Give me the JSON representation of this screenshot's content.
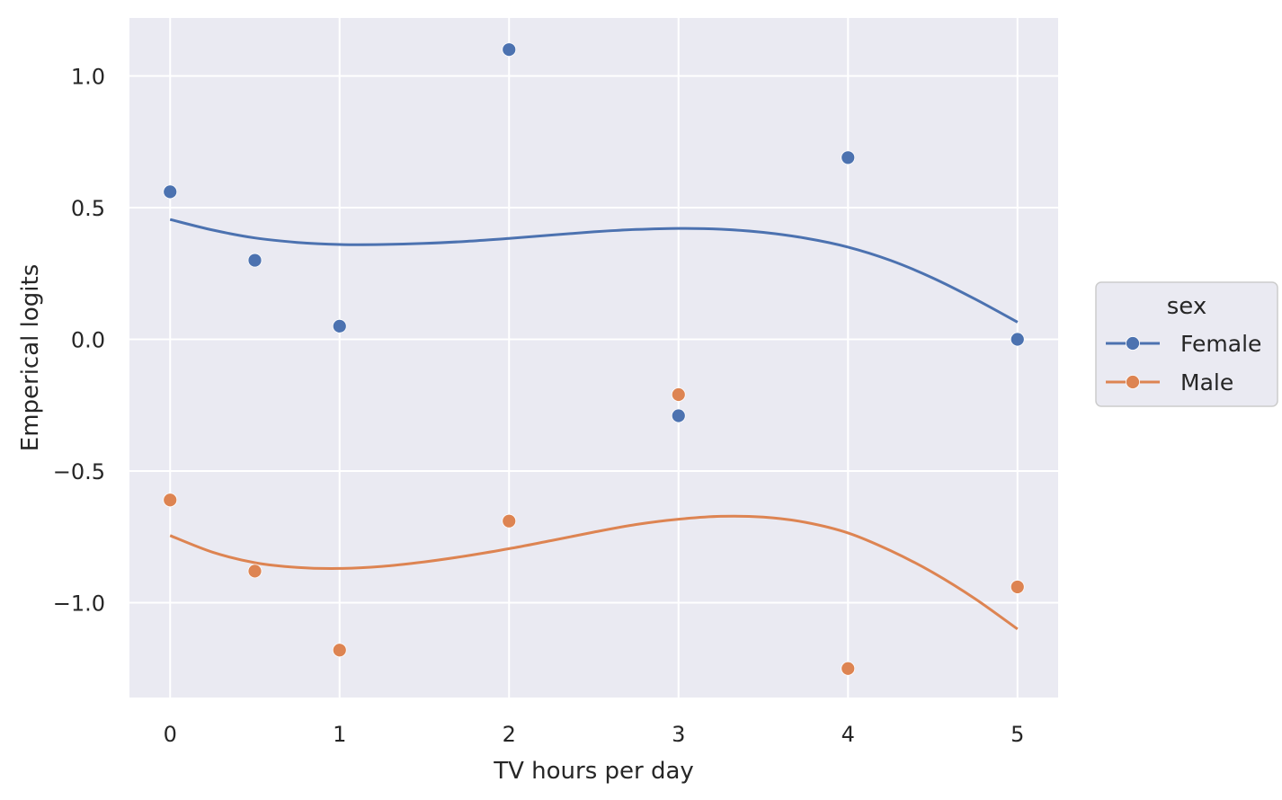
{
  "chart_data": {
    "type": "scatter",
    "xlabel": "TV hours per day",
    "ylabel": "Emperical logits",
    "xlim": [
      -0.24,
      5.24
    ],
    "ylim": [
      -1.36,
      1.22
    ],
    "xticks": [
      0,
      1,
      2,
      3,
      4,
      5
    ],
    "xtick_labels": [
      "0",
      "1",
      "2",
      "3",
      "4",
      "5"
    ],
    "yticks": [
      -1.0,
      -0.5,
      0.0,
      0.5,
      1.0
    ],
    "ytick_labels": [
      "−1.0",
      "−0.5",
      "0.0",
      "0.5",
      "1.0"
    ],
    "grid": true,
    "legend": {
      "title": "sex",
      "placement": "right"
    },
    "series": [
      {
        "name": "Female",
        "color": "#4c72b0",
        "points": {
          "x": [
            0,
            0.5,
            1,
            2,
            3,
            4,
            5
          ],
          "y": [
            0.56,
            0.3,
            0.05,
            1.1,
            -0.29,
            0.69,
            0.0
          ]
        },
        "fit": {
          "x": [
            0,
            0.25,
            0.5,
            0.75,
            1,
            1.25,
            1.5,
            1.75,
            2,
            2.25,
            2.5,
            2.75,
            3,
            3.25,
            3.5,
            3.75,
            4,
            4.25,
            4.5,
            4.75,
            5
          ],
          "y": [
            0.455,
            0.415,
            0.385,
            0.368,
            0.36,
            0.36,
            0.364,
            0.372,
            0.383,
            0.396,
            0.408,
            0.417,
            0.421,
            0.418,
            0.406,
            0.384,
            0.35,
            0.3,
            0.233,
            0.153,
            0.065
          ]
        }
      },
      {
        "name": "Male",
        "color": "#dd8452",
        "points": {
          "x": [
            0,
            0.5,
            1,
            2,
            3,
            4,
            5
          ],
          "y": [
            -0.61,
            -0.88,
            -1.18,
            -0.69,
            -0.21,
            -1.25,
            -0.94
          ]
        },
        "fit": {
          "x": [
            0,
            0.25,
            0.5,
            0.75,
            1,
            1.25,
            1.5,
            1.75,
            2,
            2.25,
            2.5,
            2.75,
            3,
            3.25,
            3.5,
            3.75,
            4,
            4.25,
            4.5,
            4.75,
            5
          ],
          "y": [
            -0.745,
            -0.808,
            -0.848,
            -0.866,
            -0.87,
            -0.862,
            -0.845,
            -0.822,
            -0.795,
            -0.764,
            -0.732,
            -0.703,
            -0.683,
            -0.672,
            -0.675,
            -0.695,
            -0.735,
            -0.802,
            -0.885,
            -0.985,
            -1.1
          ]
        }
      }
    ]
  }
}
